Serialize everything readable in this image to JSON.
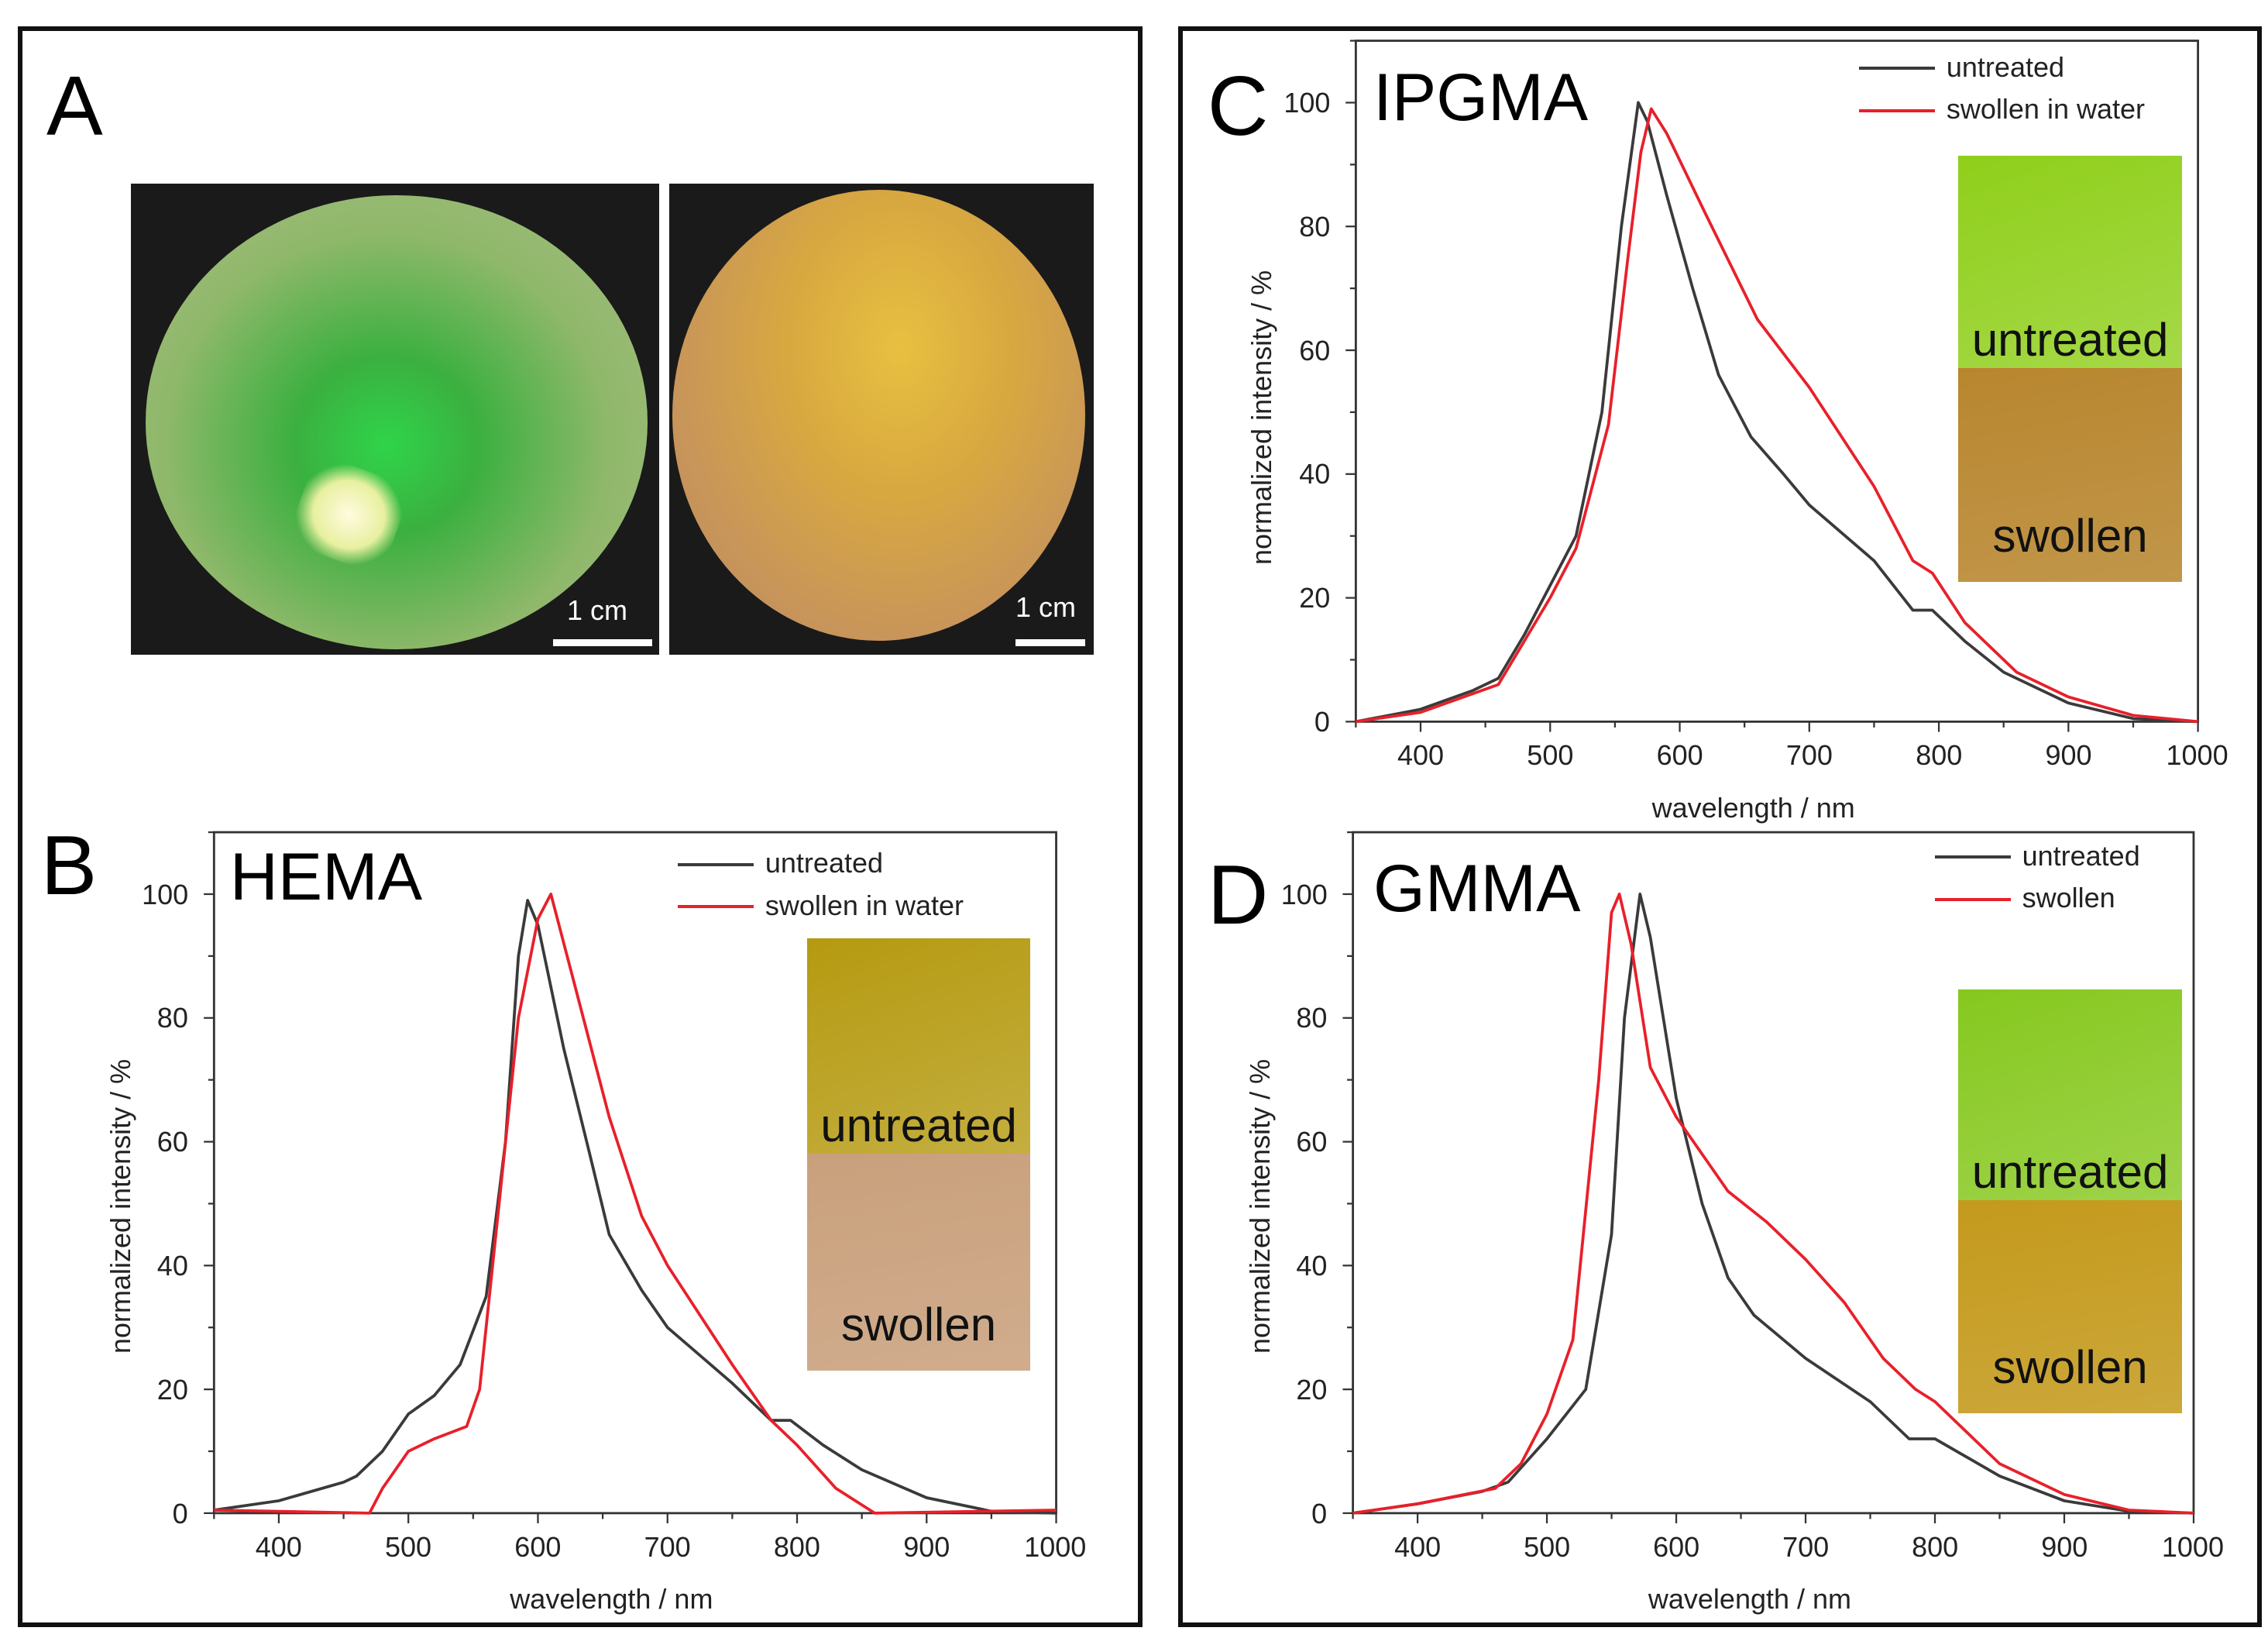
{
  "panel_a": {
    "letter": "A",
    "scale_bar_left": "1 cm",
    "scale_bar_right": "1 cm"
  },
  "colors": {
    "untreated": "#3a3a3a",
    "swollen": "#e8202a"
  },
  "chart_data": [
    {
      "panel": "B",
      "title": "HEMA",
      "type": "line",
      "xlabel": "wavelength / nm",
      "ylabel": "normalized intensity / %",
      "xlim": [
        350,
        1000
      ],
      "ylim": [
        0,
        110
      ],
      "xticks": [
        400,
        500,
        600,
        700,
        800,
        900,
        1000
      ],
      "yticks": [
        0,
        20,
        40,
        60,
        80,
        100
      ],
      "legend": "top-right",
      "inset": {
        "top_label": "untreated",
        "bottom_label": "swollen",
        "top_color": "#b59a10",
        "bottom_color": "#c9a07c"
      },
      "series": [
        {
          "name": "untreated",
          "color": "#3a3a3a",
          "points": [
            [
              350,
              0.5
            ],
            [
              400,
              2
            ],
            [
              450,
              5
            ],
            [
              460,
              6
            ],
            [
              480,
              10
            ],
            [
              500,
              16
            ],
            [
              520,
              19
            ],
            [
              540,
              24
            ],
            [
              560,
              35
            ],
            [
              575,
              60
            ],
            [
              585,
              90
            ],
            [
              592,
              99
            ],
            [
              600,
              95
            ],
            [
              620,
              75
            ],
            [
              640,
              58
            ],
            [
              655,
              45
            ],
            [
              680,
              36
            ],
            [
              700,
              30
            ],
            [
              750,
              21
            ],
            [
              780,
              15
            ],
            [
              795,
              15
            ],
            [
              820,
              11
            ],
            [
              850,
              7
            ],
            [
              900,
              2.5
            ],
            [
              950,
              0.3
            ],
            [
              1000,
              0
            ]
          ]
        },
        {
          "name": "swollen in water",
          "color": "#e8202a",
          "points": [
            [
              350,
              0.5
            ],
            [
              470,
              0
            ],
            [
              480,
              4
            ],
            [
              500,
              10
            ],
            [
              520,
              12
            ],
            [
              545,
              14
            ],
            [
              555,
              20
            ],
            [
              570,
              50
            ],
            [
              585,
              80
            ],
            [
              600,
              96
            ],
            [
              610,
              100
            ],
            [
              625,
              88
            ],
            [
              645,
              72
            ],
            [
              655,
              64
            ],
            [
              680,
              48
            ],
            [
              700,
              40
            ],
            [
              750,
              24
            ],
            [
              780,
              15
            ],
            [
              800,
              11
            ],
            [
              830,
              4
            ],
            [
              860,
              0
            ],
            [
              1000,
              0.5
            ]
          ]
        }
      ]
    },
    {
      "panel": "C",
      "title": "IPGMA",
      "type": "line",
      "xlabel": "wavelength / nm",
      "ylabel": "normalized intensity / %",
      "xlim": [
        350,
        1000
      ],
      "ylim": [
        0,
        110
      ],
      "xticks": [
        400,
        500,
        600,
        700,
        800,
        900,
        1000
      ],
      "yticks": [
        0,
        20,
        40,
        60,
        80,
        100
      ],
      "legend": "top-right",
      "inset": {
        "top_label": "untreated",
        "bottom_label": "swollen",
        "top_color": "#8fcf1a",
        "bottom_color": "#b8862e"
      },
      "series": [
        {
          "name": "untreated",
          "color": "#3a3a3a",
          "points": [
            [
              350,
              0
            ],
            [
              400,
              2
            ],
            [
              440,
              5
            ],
            [
              460,
              7
            ],
            [
              480,
              14
            ],
            [
              500,
              22
            ],
            [
              520,
              30
            ],
            [
              540,
              50
            ],
            [
              555,
              80
            ],
            [
              568,
              100
            ],
            [
              575,
              97
            ],
            [
              590,
              85
            ],
            [
              610,
              70
            ],
            [
              630,
              56
            ],
            [
              655,
              46
            ],
            [
              680,
              40
            ],
            [
              700,
              35
            ],
            [
              750,
              26
            ],
            [
              780,
              18
            ],
            [
              795,
              18
            ],
            [
              820,
              13
            ],
            [
              850,
              8
            ],
            [
              900,
              3
            ],
            [
              950,
              0.5
            ],
            [
              1000,
              0
            ]
          ]
        },
        {
          "name": "swollen in water",
          "color": "#e8202a",
          "points": [
            [
              350,
              0
            ],
            [
              400,
              1.5
            ],
            [
              460,
              6
            ],
            [
              480,
              13
            ],
            [
              500,
              20
            ],
            [
              520,
              28
            ],
            [
              545,
              48
            ],
            [
              560,
              75
            ],
            [
              570,
              92
            ],
            [
              578,
              99
            ],
            [
              590,
              95
            ],
            [
              620,
              82
            ],
            [
              660,
              65
            ],
            [
              700,
              54
            ],
            [
              750,
              38
            ],
            [
              780,
              26
            ],
            [
              795,
              24
            ],
            [
              820,
              16
            ],
            [
              860,
              8
            ],
            [
              900,
              4
            ],
            [
              950,
              1
            ],
            [
              1000,
              0
            ]
          ]
        }
      ]
    },
    {
      "panel": "D",
      "title": "GMMA",
      "type": "line",
      "xlabel": "wavelength / nm",
      "ylabel": "normalized intensity / %",
      "xlim": [
        350,
        1000
      ],
      "ylim": [
        0,
        110
      ],
      "xticks": [
        400,
        500,
        600,
        700,
        800,
        900,
        1000
      ],
      "yticks": [
        0,
        20,
        40,
        60,
        80,
        100
      ],
      "legend": "top-right",
      "inset": {
        "top_label": "untreated",
        "bottom_label": "swollen",
        "top_color": "#86c81e",
        "bottom_color": "#c49a1c"
      },
      "series": [
        {
          "name": "untreated",
          "color": "#3a3a3a",
          "points": [
            [
              350,
              0
            ],
            [
              400,
              1.5
            ],
            [
              450,
              3.5
            ],
            [
              470,
              5
            ],
            [
              500,
              12
            ],
            [
              530,
              20
            ],
            [
              550,
              45
            ],
            [
              560,
              80
            ],
            [
              572,
              100
            ],
            [
              580,
              93
            ],
            [
              600,
              67
            ],
            [
              620,
              50
            ],
            [
              640,
              38
            ],
            [
              660,
              32
            ],
            [
              700,
              25
            ],
            [
              750,
              18
            ],
            [
              780,
              12
            ],
            [
              800,
              12
            ],
            [
              850,
              6
            ],
            [
              900,
              2
            ],
            [
              950,
              0.3
            ],
            [
              1000,
              0
            ]
          ]
        },
        {
          "name": "swollen",
          "color": "#e8202a",
          "points": [
            [
              350,
              0
            ],
            [
              400,
              1.5
            ],
            [
              460,
              4
            ],
            [
              480,
              8
            ],
            [
              500,
              16
            ],
            [
              520,
              28
            ],
            [
              540,
              70
            ],
            [
              550,
              97
            ],
            [
              556,
              100
            ],
            [
              565,
              92
            ],
            [
              580,
              72
            ],
            [
              600,
              64
            ],
            [
              640,
              52
            ],
            [
              670,
              47
            ],
            [
              700,
              41
            ],
            [
              730,
              34
            ],
            [
              760,
              25
            ],
            [
              785,
              20
            ],
            [
              800,
              18
            ],
            [
              850,
              8
            ],
            [
              900,
              3
            ],
            [
              950,
              0.5
            ],
            [
              1000,
              0
            ]
          ]
        }
      ]
    }
  ]
}
